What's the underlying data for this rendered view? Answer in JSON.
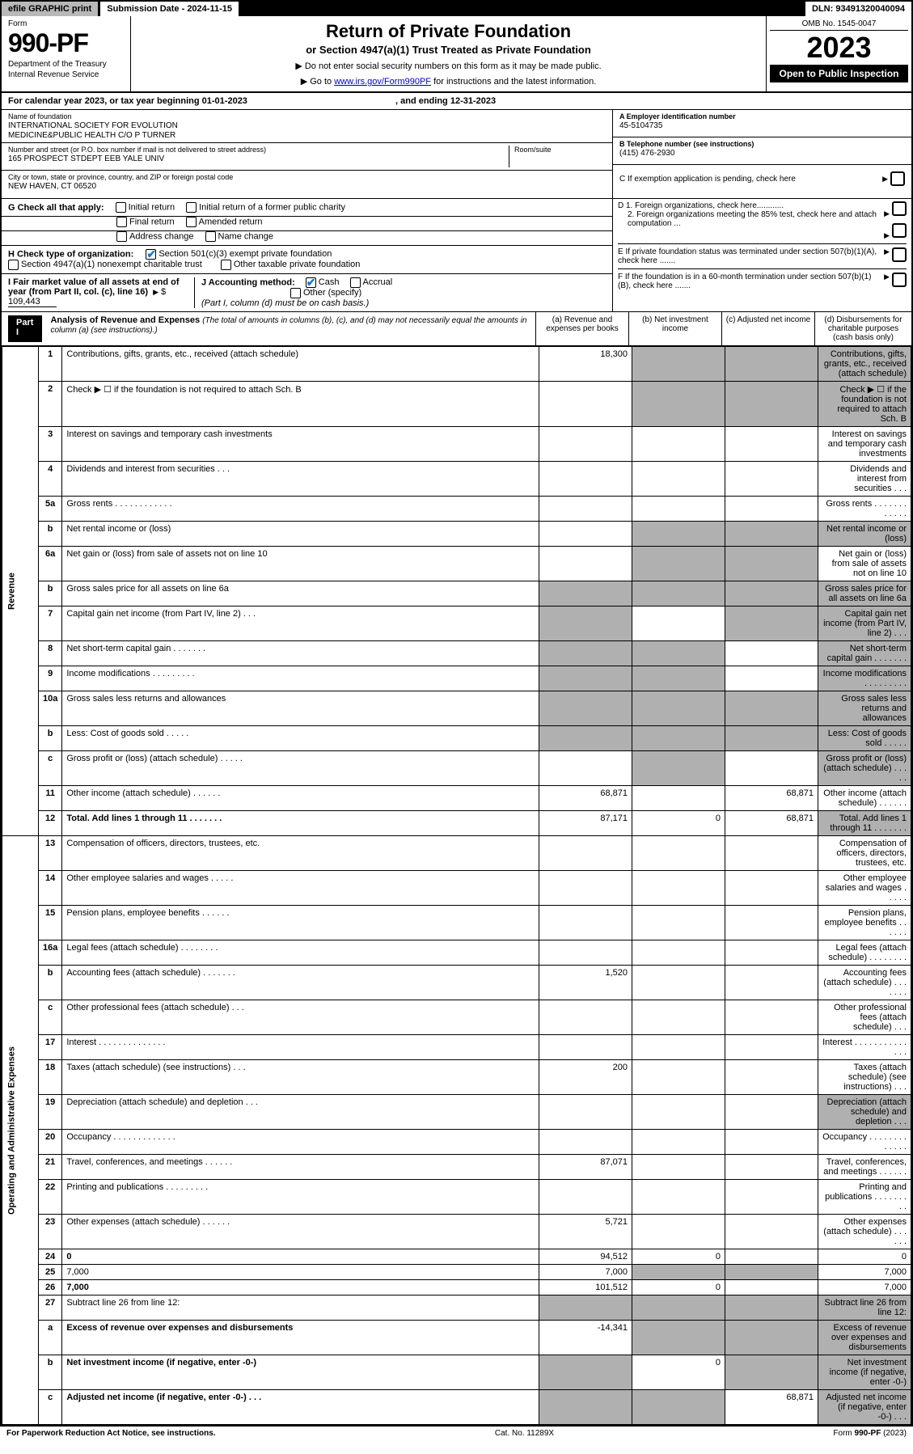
{
  "topbar": {
    "efile": "efile GRAPHIC print",
    "submission": "Submission Date - 2024-11-15",
    "dln": "DLN: 93491320040094"
  },
  "header": {
    "form_label": "Form",
    "form_num": "990-PF",
    "dept1": "Department of the Treasury",
    "dept2": "Internal Revenue Service",
    "title": "Return of Private Foundation",
    "subtitle": "or Section 4947(a)(1) Trust Treated as Private Foundation",
    "note1": "▶ Do not enter social security numbers on this form as it may be made public.",
    "note2_pre": "▶ Go to ",
    "note2_link": "www.irs.gov/Form990PF",
    "note2_post": " for instructions and the latest information.",
    "omb": "OMB No. 1545-0047",
    "year": "2023",
    "open": "Open to Public Inspection"
  },
  "calendar": {
    "pre": "For calendar year 2023, or tax year beginning ",
    "begin": "01-01-2023",
    "mid": ", and ending ",
    "end": "12-31-2023"
  },
  "foundation": {
    "name_lbl": "Name of foundation",
    "name1": "INTERNATIONAL SOCIETY FOR EVOLUTION",
    "name2": "MEDICINE&PUBLIC HEALTH C/O P TURNER",
    "addr_lbl": "Number and street (or P.O. box number if mail is not delivered to street address)",
    "addr": "165 PROSPECT STDEPT EEB YALE UNIV",
    "room_lbl": "Room/suite",
    "city_lbl": "City or town, state or province, country, and ZIP or foreign postal code",
    "city": "NEW HAVEN, CT  06520",
    "ein_lbl": "A Employer identification number",
    "ein": "45-5104735",
    "tel_lbl": "B Telephone number (see instructions)",
    "tel": "(415) 476-2930",
    "c_lbl": "C If exemption application is pending, check here"
  },
  "sectG": {
    "label": "G Check all that apply:",
    "items": [
      "Initial return",
      "Initial return of a former public charity",
      "Final return",
      "Amended return",
      "Address change",
      "Name change"
    ]
  },
  "sectH": {
    "label": "H Check type of organization:",
    "item1": "Section 501(c)(3) exempt private foundation",
    "item2": "Section 4947(a)(1) nonexempt charitable trust",
    "item3": "Other taxable private foundation"
  },
  "sectI": {
    "label": "I Fair market value of all assets at end of year (from Part II, col. (c), line 16)",
    "val": "109,443"
  },
  "sectJ": {
    "label": "J Accounting method:",
    "cash": "Cash",
    "accrual": "Accrual",
    "other": "Other (specify)",
    "note": "(Part I, column (d) must be on cash basis.)"
  },
  "sectD": {
    "d1": "D 1. Foreign organizations, check here............",
    "d2": "2. Foreign organizations meeting the 85% test, check here and attach computation ..."
  },
  "sectE": "E  If private foundation status was terminated under section 507(b)(1)(A), check here .......",
  "sectF": "F  If the foundation is in a 60-month termination under section 507(b)(1)(B), check here .......",
  "part1": {
    "label": "Part I",
    "title": "Analysis of Revenue and Expenses",
    "titlenote": "(The total of amounts in columns (b), (c), and (d) may not necessarily equal the amounts in column (a) (see instructions).)",
    "cols": {
      "a": "(a)   Revenue and expenses per books",
      "b": "(b)   Net investment income",
      "c": "(c)   Adjusted net income",
      "d": "(d)  Disbursements for charitable purposes (cash basis only)"
    }
  },
  "vlabels": {
    "rev": "Revenue",
    "exp": "Operating and Administrative Expenses"
  },
  "rows": [
    {
      "n": "1",
      "d": "Contributions, gifts, grants, etc., received (attach schedule)",
      "a": "18,300",
      "shade_b": true,
      "shade_c": true,
      "shade_d": true
    },
    {
      "n": "2",
      "d": "Check ▶ ☐ if the foundation is not required to attach Sch. B",
      "shade_a": false,
      "shade_all_rest": true
    },
    {
      "n": "3",
      "d": "Interest on savings and temporary cash investments"
    },
    {
      "n": "4",
      "d": "Dividends and interest from securities   .   .   ."
    },
    {
      "n": "5a",
      "d": "Gross rents   .   .   .   .   .   .   .   .   .   .   .   ."
    },
    {
      "n": "b",
      "d": "Net rental income or (loss)",
      "shade_rest": true
    },
    {
      "n": "6a",
      "d": "Net gain or (loss) from sale of assets not on line 10",
      "shade_b": true,
      "shade_c": true
    },
    {
      "n": "b",
      "d": "Gross sales price for all assets on line 6a",
      "shade_all": true
    },
    {
      "n": "7",
      "d": "Capital gain net income (from Part IV, line 2)   .   .   .",
      "shade_a": true,
      "shade_c": true,
      "shade_d": true
    },
    {
      "n": "8",
      "d": "Net short-term capital gain   .   .   .   .   .   .   .",
      "shade_a": true,
      "shade_b": true,
      "shade_d": true
    },
    {
      "n": "9",
      "d": "Income modifications   .   .   .   .   .   .   .   .   .",
      "shade_a": true,
      "shade_b": true,
      "shade_d": true
    },
    {
      "n": "10a",
      "d": "Gross sales less returns and allowances",
      "shade_all": true
    },
    {
      "n": "b",
      "d": "Less: Cost of goods sold   .   .   .   .   .",
      "shade_all": true
    },
    {
      "n": "c",
      "d": "Gross profit or (loss) (attach schedule)   .   .   .   .   .",
      "shade_b": true,
      "shade_d": true
    },
    {
      "n": "11",
      "d": "Other income (attach schedule)   .   .   .   .   .   .",
      "a": "68,871",
      "c": "68,871"
    },
    {
      "n": "12",
      "d": "Total. Add lines 1 through 11   .   .   .   .   .   .   .",
      "bold": true,
      "a": "87,171",
      "b": "0",
      "c": "68,871",
      "shade_d": true
    },
    {
      "n": "13",
      "d": "Compensation of officers, directors, trustees, etc."
    },
    {
      "n": "14",
      "d": "Other employee salaries and wages   .   .   .   .   ."
    },
    {
      "n": "15",
      "d": "Pension plans, employee benefits   .   .   .   .   .   ."
    },
    {
      "n": "16a",
      "d": "Legal fees (attach schedule)   .   .   .   .   .   .   .   ."
    },
    {
      "n": "b",
      "d": "Accounting fees (attach schedule)   .   .   .   .   .   .   .",
      "a": "1,520"
    },
    {
      "n": "c",
      "d": "Other professional fees (attach schedule)   .   .   ."
    },
    {
      "n": "17",
      "d": "Interest   .   .   .   .   .   .   .   .   .   .   .   .   .   ."
    },
    {
      "n": "18",
      "d": "Taxes (attach schedule) (see instructions)   .   .   .",
      "a": "200"
    },
    {
      "n": "19",
      "d": "Depreciation (attach schedule) and depletion   .   .   .",
      "shade_d": true
    },
    {
      "n": "20",
      "d": "Occupancy   .   .   .   .   .   .   .   .   .   .   .   .   ."
    },
    {
      "n": "21",
      "d": "Travel, conferences, and meetings   .   .   .   .   .   .",
      "a": "87,071"
    },
    {
      "n": "22",
      "d": "Printing and publications   .   .   .   .   .   .   .   .   ."
    },
    {
      "n": "23",
      "d": "Other expenses (attach schedule)   .   .   .   .   .   .",
      "a": "5,721"
    },
    {
      "n": "24",
      "d": "0",
      "bold": true,
      "a": "94,512",
      "b": "0"
    },
    {
      "n": "25",
      "d": "7,000",
      "a": "7,000",
      "shade_b": true,
      "shade_c": true
    },
    {
      "n": "26",
      "d": "7,000",
      "bold": true,
      "a": "101,512",
      "b": "0"
    },
    {
      "n": "27",
      "d": "Subtract line 26 from line 12:",
      "shade_all": true
    },
    {
      "n": "a",
      "d": "Excess of revenue over expenses and disbursements",
      "bold": true,
      "a": "-14,341",
      "shade_b": true,
      "shade_c": true,
      "shade_d": true
    },
    {
      "n": "b",
      "d": "Net investment income (if negative, enter -0-)",
      "bold": true,
      "shade_a": true,
      "b": "0",
      "shade_c": true,
      "shade_d": true
    },
    {
      "n": "c",
      "d": "Adjusted net income (if negative, enter -0-)   .   .   .",
      "bold": true,
      "shade_a": true,
      "shade_b": true,
      "c": "68,871",
      "shade_d": true
    }
  ],
  "footer": {
    "left": "For Paperwork Reduction Act Notice, see instructions.",
    "mid": "Cat. No. 11289X",
    "right": "Form 990-PF (2023)"
  }
}
